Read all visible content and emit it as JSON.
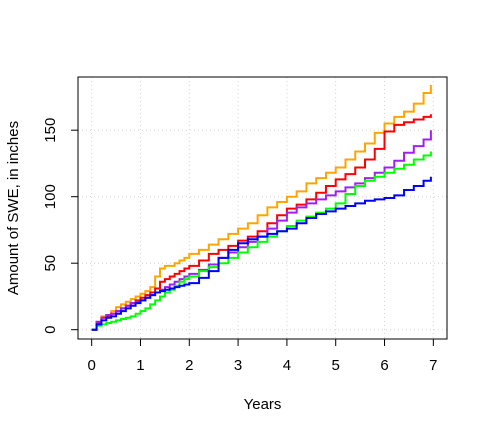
{
  "chart_data": {
    "type": "line",
    "title": "",
    "xlabel": "Years",
    "ylabel": "Amount of SWE, in inches",
    "xlim": [
      -0.28,
      7.28
    ],
    "ylim": [
      -7,
      190
    ],
    "x_ticks": [
      0,
      1,
      2,
      3,
      4,
      5,
      6,
      7
    ],
    "y_ticks": [
      0,
      50,
      100,
      150
    ],
    "grid": true,
    "series": [
      {
        "color": "#FFA500",
        "x": [
          0,
          0.1,
          0.2,
          0.3,
          0.4,
          0.5,
          0.6,
          0.7,
          0.8,
          0.9,
          1.0,
          1.1,
          1.2,
          1.3,
          1.4,
          1.5,
          1.6,
          1.7,
          1.8,
          1.9,
          2.0,
          2.2,
          2.4,
          2.6,
          2.8,
          3.0,
          3.2,
          3.4,
          3.6,
          3.8,
          4.0,
          4.2,
          4.4,
          4.6,
          4.8,
          5.0,
          5.2,
          5.4,
          5.6,
          5.8,
          6.0,
          6.2,
          6.4,
          6.6,
          6.8,
          6.95
        ],
        "y": [
          0,
          5,
          10,
          11,
          14,
          17,
          19,
          21,
          23,
          25,
          27,
          29,
          32,
          40,
          46,
          48,
          48,
          50,
          52,
          54,
          57,
          60,
          64,
          68,
          72,
          76,
          80,
          86,
          92,
          96,
          100,
          104,
          110,
          114,
          118,
          122,
          128,
          134,
          140,
          148,
          155,
          160,
          164,
          170,
          178,
          184
        ]
      },
      {
        "color": "#FF0000",
        "x": [
          0,
          0.1,
          0.2,
          0.3,
          0.4,
          0.5,
          0.6,
          0.7,
          0.8,
          0.9,
          1.0,
          1.1,
          1.2,
          1.3,
          1.4,
          1.5,
          1.6,
          1.7,
          1.8,
          1.9,
          2.0,
          2.2,
          2.4,
          2.6,
          2.8,
          3.0,
          3.2,
          3.4,
          3.6,
          3.8,
          4.0,
          4.2,
          4.4,
          4.6,
          4.8,
          5.0,
          5.2,
          5.4,
          5.6,
          5.8,
          6.0,
          6.2,
          6.4,
          6.6,
          6.8,
          6.95
        ],
        "y": [
          0,
          5,
          9,
          10,
          12,
          14,
          16,
          18,
          20,
          22,
          24,
          26,
          28,
          31,
          36,
          38,
          40,
          42,
          44,
          46,
          48,
          52,
          57,
          60,
          63,
          67,
          70,
          74,
          80,
          86,
          91,
          94,
          98,
          103,
          108,
          113,
          117,
          122,
          128,
          136,
          149,
          154,
          156,
          158,
          160,
          162
        ]
      },
      {
        "color": "#A020F0",
        "x": [
          0,
          0.1,
          0.2,
          0.3,
          0.4,
          0.5,
          0.6,
          0.7,
          0.8,
          0.9,
          1.0,
          1.1,
          1.2,
          1.3,
          1.4,
          1.5,
          1.6,
          1.7,
          1.8,
          1.9,
          2.0,
          2.2,
          2.4,
          2.6,
          2.8,
          3.0,
          3.2,
          3.4,
          3.6,
          3.8,
          4.0,
          4.2,
          4.4,
          4.6,
          4.8,
          5.0,
          5.2,
          5.4,
          5.6,
          5.8,
          6.0,
          6.2,
          6.4,
          6.6,
          6.8,
          6.95
        ],
        "y": [
          0,
          6,
          9,
          11,
          12,
          14,
          16,
          18,
          20,
          21,
          22,
          24,
          26,
          28,
          30,
          32,
          34,
          36,
          38,
          40,
          42,
          45,
          49,
          54,
          58,
          62,
          66,
          70,
          76,
          82,
          88,
          92,
          95,
          98,
          101,
          104,
          107,
          110,
          114,
          118,
          122,
          127,
          133,
          138,
          143,
          150
        ]
      },
      {
        "color": "#00FF00",
        "x": [
          0,
          0.1,
          0.2,
          0.3,
          0.4,
          0.5,
          0.6,
          0.7,
          0.8,
          0.9,
          1.0,
          1.1,
          1.2,
          1.3,
          1.4,
          1.5,
          1.6,
          1.7,
          1.8,
          1.9,
          2.0,
          2.2,
          2.4,
          2.6,
          2.8,
          3.0,
          3.2,
          3.4,
          3.6,
          3.8,
          4.0,
          4.2,
          4.4,
          4.6,
          4.8,
          5.0,
          5.2,
          5.4,
          5.6,
          5.8,
          6.0,
          6.2,
          6.4,
          6.6,
          6.8,
          6.95
        ],
        "y": [
          0,
          3,
          4,
          5,
          6,
          7,
          8,
          9,
          10,
          12,
          14,
          16,
          19,
          22,
          25,
          28,
          30,
          33,
          36,
          38,
          40,
          44,
          47,
          50,
          54,
          58,
          62,
          66,
          70,
          74,
          78,
          82,
          85,
          88,
          91,
          95,
          102,
          108,
          112,
          115,
          118,
          121,
          124,
          128,
          131,
          134
        ]
      },
      {
        "color": "#0000FF",
        "x": [
          0,
          0.1,
          0.2,
          0.3,
          0.4,
          0.5,
          0.6,
          0.7,
          0.8,
          0.9,
          1.0,
          1.1,
          1.2,
          1.3,
          1.4,
          1.5,
          1.6,
          1.7,
          1.8,
          1.9,
          2.0,
          2.2,
          2.4,
          2.6,
          2.8,
          3.0,
          3.2,
          3.4,
          3.6,
          3.8,
          4.0,
          4.2,
          4.4,
          4.6,
          4.8,
          5.0,
          5.2,
          5.4,
          5.6,
          5.8,
          6.0,
          6.2,
          6.4,
          6.6,
          6.8,
          6.95
        ],
        "y": [
          0,
          4,
          7,
          9,
          10,
          12,
          14,
          16,
          18,
          20,
          22,
          24,
          26,
          28,
          29,
          30,
          31,
          32,
          33,
          34,
          35,
          39,
          44,
          54,
          60,
          65,
          68,
          70,
          72,
          74,
          76,
          80,
          84,
          87,
          89,
          91,
          93,
          95,
          97,
          98,
          99,
          101,
          105,
          108,
          112,
          115
        ]
      }
    ]
  }
}
